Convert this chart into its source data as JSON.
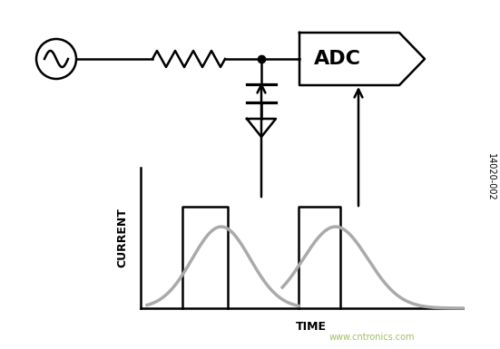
{
  "bg_color": "#ffffff",
  "line_color": "#000000",
  "gray_color": "#aaaaaa",
  "adc_label": "ADC",
  "adc_label_fontsize": 16,
  "current_label": "CURRENT",
  "time_label": "TIME",
  "watermark": "www.cntronics.com",
  "watermark_color": "#a0c060",
  "id_label": "14020-002",
  "fig_width": 5.51,
  "fig_height": 3.85,
  "dpi": 100
}
